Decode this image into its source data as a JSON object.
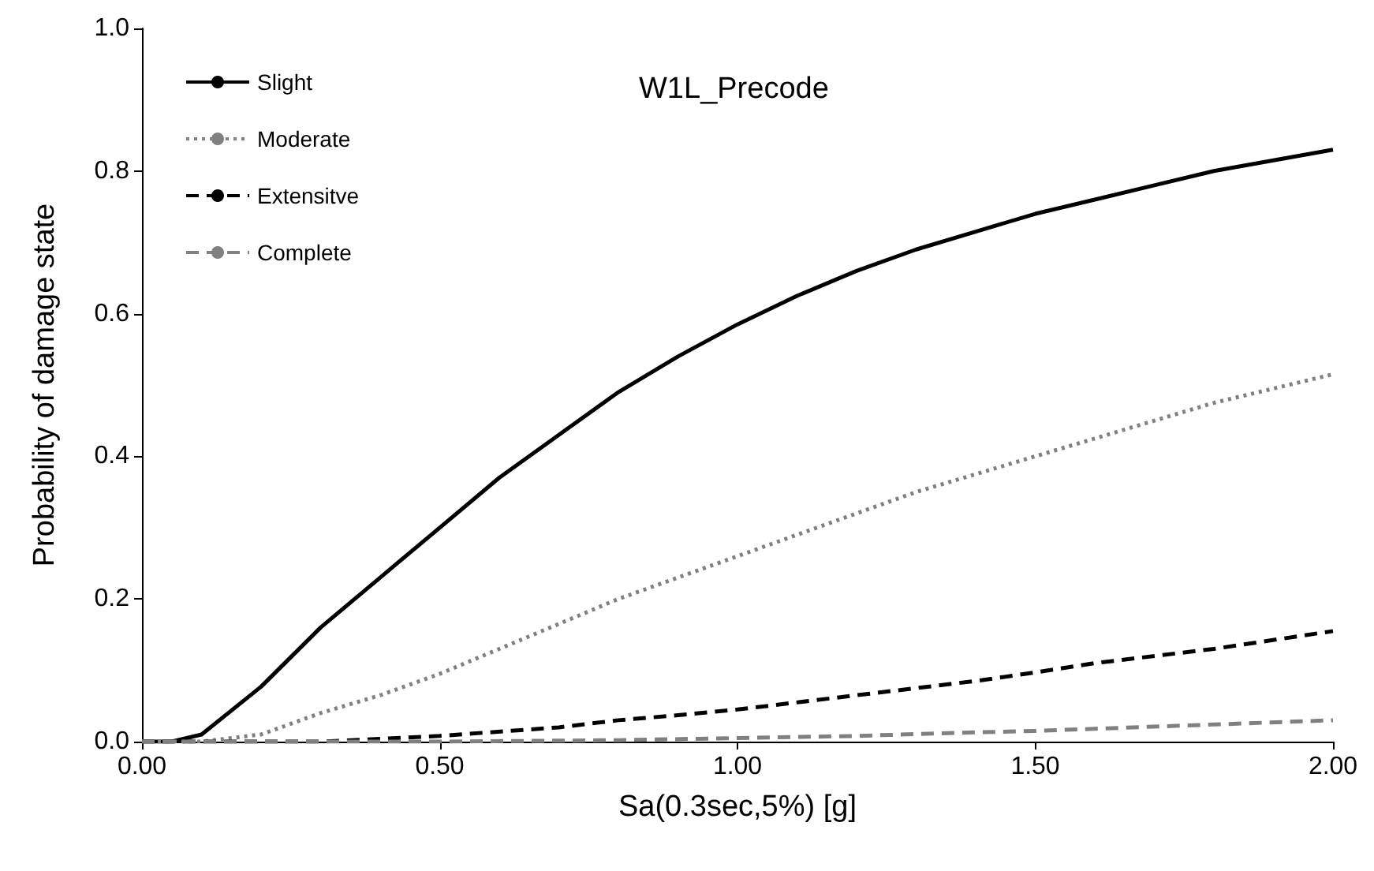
{
  "chart_data": {
    "type": "line",
    "title": "W1L_Precode",
    "xlabel": "Sa(0.3sec,5%) [g]",
    "ylabel": "Probability of damage state",
    "xlim": [
      0,
      2
    ],
    "ylim": [
      0,
      1
    ],
    "xticks": [
      {
        "value": 0,
        "label": "0.00"
      },
      {
        "value": 0.5,
        "label": "0.50"
      },
      {
        "value": 1,
        "label": "1.00"
      },
      {
        "value": 1.5,
        "label": "1.50"
      },
      {
        "value": 2,
        "label": "2.00"
      }
    ],
    "yticks": [
      {
        "value": 0,
        "label": "0.0"
      },
      {
        "value": 0.2,
        "label": "0.2"
      },
      {
        "value": 0.4,
        "label": "0.4"
      },
      {
        "value": 0.6,
        "label": "0.6"
      },
      {
        "value": 0.8,
        "label": "0.8"
      },
      {
        "value": 1,
        "label": "1.0"
      }
    ],
    "grid": false,
    "legend": "top left",
    "marker": "none",
    "series": [
      {
        "name": "Slight",
        "color": "#000000",
        "line_style": "solid",
        "x": [
          0,
          0.05,
          0.1,
          0.2,
          0.3,
          0.4,
          0.5,
          0.6,
          0.7,
          0.8,
          0.9,
          1.0,
          1.1,
          1.2,
          1.3,
          1.4,
          1.5,
          1.6,
          1.7,
          1.8,
          1.9,
          2.0
        ],
        "values": [
          0,
          0,
          0.01,
          0.077,
          0.16,
          0.23,
          0.3,
          0.37,
          0.43,
          0.49,
          0.54,
          0.585,
          0.625,
          0.66,
          0.69,
          0.715,
          0.74,
          0.76,
          0.78,
          0.8,
          0.815,
          0.83
        ]
      },
      {
        "name": "Moderate",
        "color": "#808080",
        "line_style": "dotted",
        "x": [
          0,
          0.1,
          0.2,
          0.3,
          0.4,
          0.5,
          0.6,
          0.7,
          0.8,
          0.9,
          1.0,
          1.1,
          1.2,
          1.3,
          1.4,
          1.5,
          1.6,
          1.7,
          1.8,
          1.9,
          2.0
        ],
        "values": [
          0,
          0,
          0.01,
          0.04,
          0.065,
          0.095,
          0.13,
          0.165,
          0.2,
          0.23,
          0.26,
          0.29,
          0.32,
          0.35,
          0.375,
          0.4,
          0.425,
          0.45,
          0.475,
          0.495,
          0.515
        ]
      },
      {
        "name": "Extensitve",
        "color": "#000000",
        "line_style": "dashed",
        "x": [
          0,
          0.3,
          0.5,
          0.7,
          0.8,
          0.9,
          1.0,
          1.2,
          1.4,
          1.5,
          1.6,
          1.8,
          2.0
        ],
        "values": [
          0,
          0,
          0.008,
          0.02,
          0.03,
          0.037,
          0.045,
          0.065,
          0.085,
          0.097,
          0.11,
          0.13,
          0.155
        ]
      },
      {
        "name": "Complete",
        "color": "#808080",
        "line_style": "dashed",
        "x": [
          0,
          0.5,
          0.8,
          1.0,
          1.2,
          1.4,
          1.5,
          1.6,
          1.8,
          2.0
        ],
        "values": [
          0,
          0,
          0.002,
          0.005,
          0.008,
          0.013,
          0.015,
          0.018,
          0.024,
          0.03
        ]
      }
    ]
  }
}
